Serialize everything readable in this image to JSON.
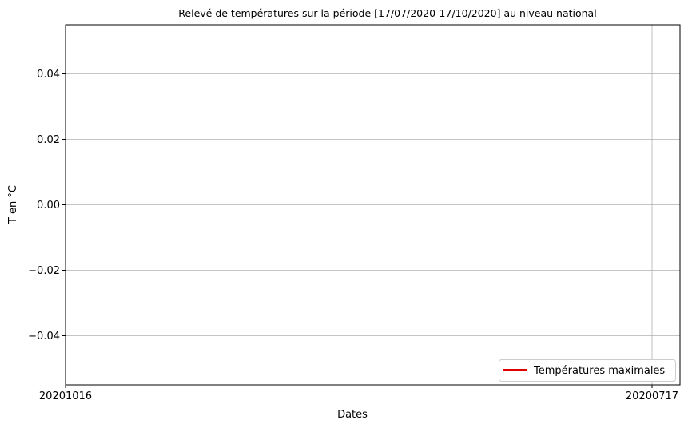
{
  "chart_data": {
    "type": "line",
    "title": "Relevé de températures sur la période [17/07/2020-17/10/2020] au niveau national",
    "xlabel": "Dates",
    "ylabel": "T en °C",
    "x_ticks": [
      "20201016",
      "20200717"
    ],
    "y_ticks": [
      -0.04,
      -0.02,
      0.0,
      0.02,
      0.04
    ],
    "y_tick_labels": [
      "−0.04",
      "−0.02",
      "0.00",
      "0.02",
      "0.04"
    ],
    "ylim": [
      -0.055,
      0.055
    ],
    "grid": true,
    "legend_position": "bottom-right",
    "series": [
      {
        "name": "Températures maximales",
        "color": "#e00000",
        "x": [],
        "values": []
      }
    ]
  }
}
